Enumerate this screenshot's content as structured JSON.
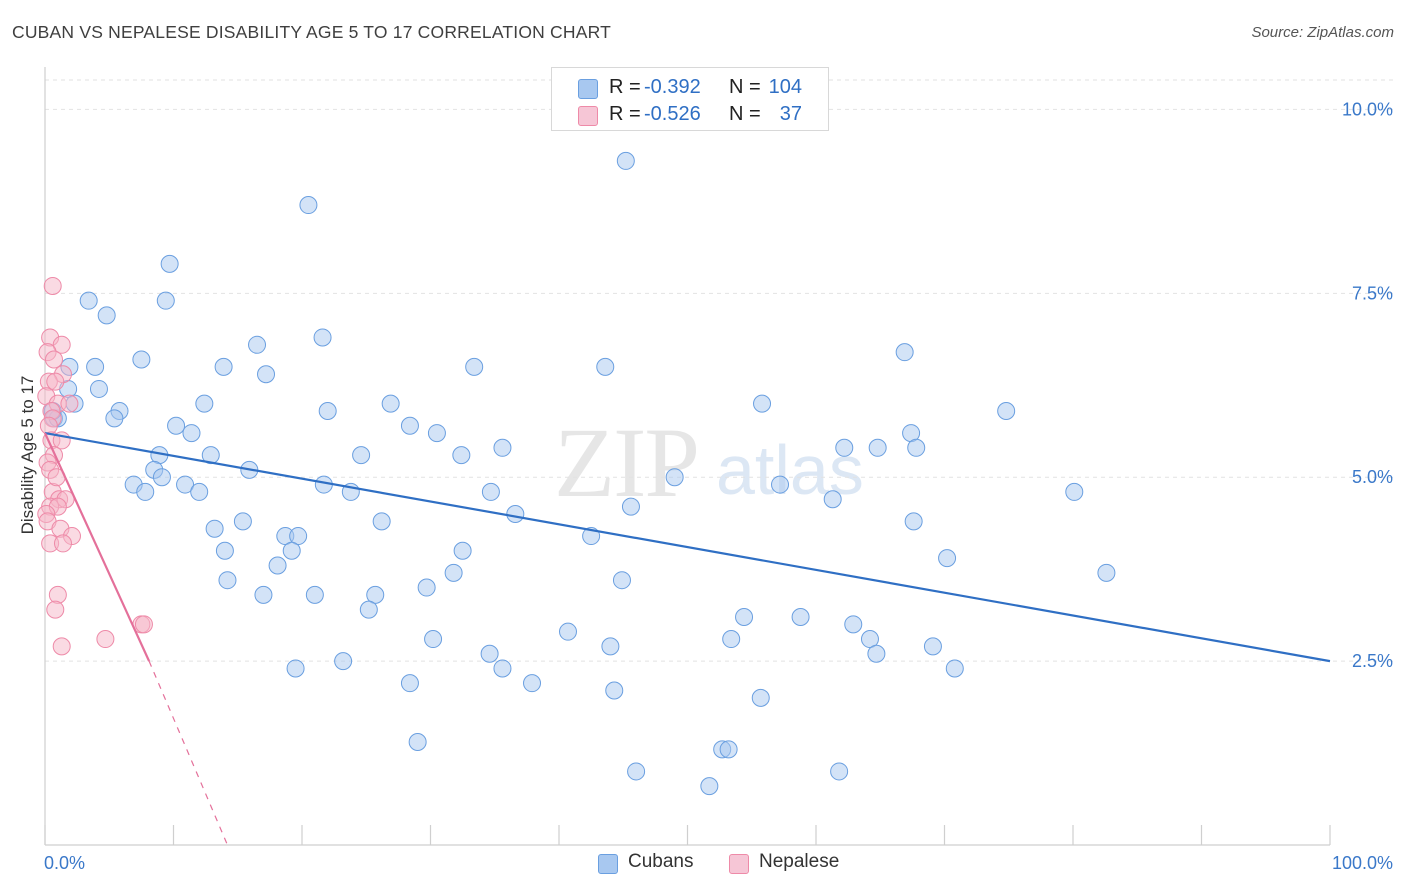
{
  "title": "CUBAN VS NEPALESE DISABILITY AGE 5 TO 17 CORRELATION CHART",
  "source": "Source: ZipAtlas.com",
  "watermark": {
    "zip": "ZIP",
    "atlas": "atlas"
  },
  "legend": {
    "rows": [
      {
        "r_label": "R =",
        "r_value": "-0.392",
        "n_label": "N =",
        "n_value": "104",
        "color": "#a8c8f0",
        "stroke": "#6a9fe0"
      },
      {
        "r_label": "R =",
        "r_value": "-0.526",
        "n_label": "N =",
        "n_value": "37",
        "color": "#f6b6c8",
        "stroke": "#ee8aa8"
      }
    ]
  },
  "bottom_legend": {
    "cubans": "Cubans",
    "nepalese": "Nepalese"
  },
  "chart_data": {
    "type": "scatter",
    "title": "CUBAN VS NEPALESE DISABILITY AGE 5 TO 17 CORRELATION CHART",
    "xlabel": "",
    "ylabel": "Disability Age 5 to 17",
    "xlim": [
      0,
      100
    ],
    "ylim": [
      0,
      10.4
    ],
    "x_tick_labels": [
      "0.0%",
      "100.0%"
    ],
    "y_ticks": [
      2.5,
      5.0,
      7.5,
      10.0
    ],
    "y_tick_labels": [
      "2.5%",
      "5.0%",
      "7.5%",
      "10.0%"
    ],
    "grid": true,
    "legend_position": "top-center",
    "series": [
      {
        "name": "Cubans",
        "color": "#a8c8f0",
        "stroke": "#6a9fe0",
        "trend_color": "#2f6fc4",
        "trend": {
          "x0": 0,
          "y0": 5.6,
          "x1": 100,
          "y1": 2.5
        },
        "points": [
          [
            45.2,
            9.3
          ],
          [
            20.5,
            8.7
          ],
          [
            9.7,
            7.9
          ],
          [
            3.4,
            7.4
          ],
          [
            9.4,
            7.4
          ],
          [
            4.8,
            7.2
          ],
          [
            16.5,
            6.8
          ],
          [
            21.6,
            6.9
          ],
          [
            7.5,
            6.6
          ],
          [
            1.9,
            6.5
          ],
          [
            3.9,
            6.5
          ],
          [
            13.9,
            6.5
          ],
          [
            17.2,
            6.4
          ],
          [
            33.4,
            6.5
          ],
          [
            43.6,
            6.5
          ],
          [
            1.8,
            6.2
          ],
          [
            4.2,
            6.2
          ],
          [
            2.3,
            6.0
          ],
          [
            5.8,
            5.9
          ],
          [
            12.4,
            6.0
          ],
          [
            22.0,
            5.9
          ],
          [
            26.9,
            6.0
          ],
          [
            55.8,
            6.0
          ],
          [
            5.4,
            5.8
          ],
          [
            0.7,
            5.8
          ],
          [
            1.0,
            5.8
          ],
          [
            10.2,
            5.7
          ],
          [
            11.4,
            5.6
          ],
          [
            28.4,
            5.7
          ],
          [
            30.5,
            5.6
          ],
          [
            66.9,
            6.7
          ],
          [
            74.8,
            5.9
          ],
          [
            67.4,
            5.6
          ],
          [
            8.9,
            5.3
          ],
          [
            12.9,
            5.3
          ],
          [
            24.6,
            5.3
          ],
          [
            32.4,
            5.3
          ],
          [
            35.6,
            5.4
          ],
          [
            62.2,
            5.4
          ],
          [
            64.8,
            5.4
          ],
          [
            67.8,
            5.4
          ],
          [
            8.5,
            5.1
          ],
          [
            15.9,
            5.1
          ],
          [
            9.1,
            5.0
          ],
          [
            49.0,
            5.0
          ],
          [
            6.9,
            4.9
          ],
          [
            7.8,
            4.8
          ],
          [
            10.9,
            4.9
          ],
          [
            12.0,
            4.8
          ],
          [
            21.7,
            4.9
          ],
          [
            23.8,
            4.8
          ],
          [
            34.7,
            4.8
          ],
          [
            57.2,
            4.9
          ],
          [
            61.3,
            4.7
          ],
          [
            80.1,
            4.8
          ],
          [
            36.6,
            4.5
          ],
          [
            45.6,
            4.6
          ],
          [
            15.4,
            4.4
          ],
          [
            26.2,
            4.4
          ],
          [
            67.6,
            4.4
          ],
          [
            13.2,
            4.3
          ],
          [
            18.7,
            4.2
          ],
          [
            19.7,
            4.2
          ],
          [
            42.5,
            4.2
          ],
          [
            14.0,
            4.0
          ],
          [
            19.2,
            4.0
          ],
          [
            32.5,
            4.0
          ],
          [
            18.1,
            3.8
          ],
          [
            70.2,
            3.9
          ],
          [
            82.6,
            3.7
          ],
          [
            14.2,
            3.6
          ],
          [
            31.8,
            3.7
          ],
          [
            44.9,
            3.6
          ],
          [
            17.0,
            3.4
          ],
          [
            21.0,
            3.4
          ],
          [
            25.7,
            3.4
          ],
          [
            29.7,
            3.5
          ],
          [
            25.2,
            3.2
          ],
          [
            54.4,
            3.1
          ],
          [
            58.8,
            3.1
          ],
          [
            62.9,
            3.0
          ],
          [
            30.2,
            2.8
          ],
          [
            40.7,
            2.9
          ],
          [
            53.4,
            2.8
          ],
          [
            64.2,
            2.8
          ],
          [
            34.6,
            2.6
          ],
          [
            69.1,
            2.7
          ],
          [
            44.0,
            2.7
          ],
          [
            64.7,
            2.6
          ],
          [
            23.2,
            2.5
          ],
          [
            19.5,
            2.4
          ],
          [
            35.6,
            2.4
          ],
          [
            70.8,
            2.4
          ],
          [
            28.4,
            2.2
          ],
          [
            37.9,
            2.2
          ],
          [
            44.3,
            2.1
          ],
          [
            55.7,
            2.0
          ],
          [
            29.0,
            1.4
          ],
          [
            52.7,
            1.3
          ],
          [
            53.2,
            1.3
          ],
          [
            46.0,
            1.0
          ],
          [
            61.8,
            1.0
          ],
          [
            51.7,
            0.8
          ],
          [
            0.6,
            5.9
          ]
        ]
      },
      {
        "name": "Nepalese",
        "color": "#f6b6c8",
        "stroke": "#ee8aa8",
        "trend_color": "#e4709a",
        "trend": {
          "x0": 0,
          "y0": 5.6,
          "x1": 8.1,
          "y1": 2.5,
          "dash_x1": 14.2,
          "dash_y1": 0.0
        },
        "points": [
          [
            0.6,
            7.6
          ],
          [
            0.4,
            6.9
          ],
          [
            1.3,
            6.8
          ],
          [
            0.2,
            6.7
          ],
          [
            0.7,
            6.6
          ],
          [
            1.4,
            6.4
          ],
          [
            0.3,
            6.3
          ],
          [
            0.8,
            6.3
          ],
          [
            0.1,
            6.1
          ],
          [
            1.0,
            6.0
          ],
          [
            1.9,
            6.0
          ],
          [
            0.5,
            5.9
          ],
          [
            0.6,
            5.8
          ],
          [
            0.3,
            5.7
          ],
          [
            0.5,
            5.5
          ],
          [
            1.3,
            5.5
          ],
          [
            0.7,
            5.3
          ],
          [
            0.2,
            5.2
          ],
          [
            0.4,
            5.1
          ],
          [
            0.6,
            4.8
          ],
          [
            1.1,
            4.7
          ],
          [
            1.6,
            4.7
          ],
          [
            0.4,
            4.6
          ],
          [
            1.0,
            4.6
          ],
          [
            0.1,
            4.5
          ],
          [
            0.2,
            4.4
          ],
          [
            1.2,
            4.3
          ],
          [
            2.1,
            4.2
          ],
          [
            0.4,
            4.1
          ],
          [
            1.4,
            4.1
          ],
          [
            1.0,
            3.4
          ],
          [
            0.8,
            3.2
          ],
          [
            7.5,
            3.0
          ],
          [
            7.7,
            3.0
          ],
          [
            4.7,
            2.8
          ],
          [
            1.3,
            2.7
          ],
          [
            0.9,
            5.0
          ]
        ]
      }
    ]
  }
}
